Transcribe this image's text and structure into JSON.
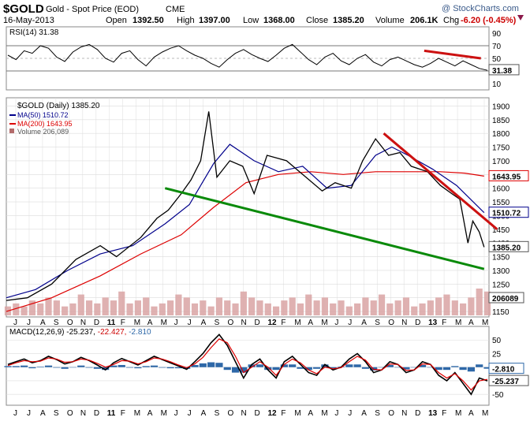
{
  "header": {
    "symbol": "$GOLD",
    "name": "Gold - Spot Price (EOD)",
    "exchange": "CME",
    "date": "16-May-2013",
    "open_label": "Open",
    "open": "1392.50",
    "high_label": "High",
    "high": "1397.00",
    "low_label": "Low",
    "low": "1368.00",
    "close_label": "Close",
    "close": "1385.20",
    "volume_label": "Volume",
    "volume": "206.1K",
    "chg_label": "Chg",
    "chg": "-6.20 (-0.45%)",
    "watermark": "@ StockCharts.com"
  },
  "colors": {
    "price": "#000000",
    "ma50": "#00008b",
    "ma200": "#dd0000",
    "volume": "#d9a3a3",
    "green_trend": "#0a8a0a",
    "red_trend": "#cc1111",
    "macd_hist": "#2e68a8",
    "macd_signal": "#dd0000",
    "grid": "#dcdcdc"
  },
  "chart_data": [
    {
      "type": "line",
      "panel": "rsi",
      "label": "RSI(14) 31.38",
      "last_value": "31.38",
      "ylim": [
        0,
        100
      ],
      "ticks": [
        "90",
        "70",
        "50",
        "30",
        "10"
      ],
      "levels": [
        30,
        70
      ],
      "trendline": {
        "x": [
          2013.0,
          2013.35
        ],
        "y": [
          62,
          50
        ]
      },
      "values": [
        55,
        48,
        62,
        58,
        70,
        66,
        52,
        45,
        60,
        68,
        72,
        64,
        50,
        44,
        58,
        62,
        48,
        38,
        52,
        60,
        66,
        70,
        62,
        55,
        50,
        42,
        36,
        48,
        58,
        64,
        56,
        50,
        45,
        55,
        66,
        72,
        60,
        48,
        40,
        52,
        58,
        46,
        40,
        50,
        56,
        44,
        38,
        48,
        52,
        46,
        40,
        36,
        42,
        50,
        44,
        38,
        46,
        40,
        34,
        31
      ]
    },
    {
      "type": "line",
      "panel": "price",
      "title": "$GOLD (Daily) 1385.20",
      "legend": [
        {
          "name": "$GOLD (Daily)",
          "value": "1385.20"
        },
        {
          "name": "MA(50)",
          "value": "1510.72"
        },
        {
          "name": "MA(200)",
          "value": "1643.95"
        },
        {
          "name": "Volume",
          "value": "206,089"
        }
      ],
      "ylim": [
        1130,
        1930
      ],
      "yticks": [
        "1900",
        "1850",
        "1800",
        "1750",
        "1700",
        "1650",
        "1600",
        "1550",
        "1500",
        "1450",
        "1400",
        "1350",
        "1300",
        "1250",
        "1200",
        "1150"
      ],
      "x_labels": [
        "J",
        "J",
        "A",
        "S",
        "O",
        "N",
        "D",
        "11",
        "F",
        "M",
        "A",
        "M",
        "J",
        "J",
        "A",
        "S",
        "O",
        "N",
        "D",
        "12",
        "F",
        "M",
        "A",
        "M",
        "J",
        "J",
        "A",
        "S",
        "O",
        "N",
        "D",
        "13",
        "F",
        "M",
        "A",
        "M"
      ],
      "last_labels": {
        "ma200": "1643.95",
        "ma50": "1510.72",
        "close": "1385.20",
        "volume": "206089"
      },
      "series": [
        {
          "name": "Close",
          "x": [
            2010.42,
            2010.55,
            2010.7,
            2010.85,
            2011.0,
            2011.1,
            2011.25,
            2011.35,
            2011.42,
            2011.5,
            2011.56,
            2011.62,
            2011.67,
            2011.72,
            2011.8,
            2011.88,
            2011.95,
            2012.03,
            2012.15,
            2012.25,
            2012.37,
            2012.45,
            2012.55,
            2012.62,
            2012.7,
            2012.78,
            2012.85,
            2012.92,
            2013.02,
            2013.1,
            2013.17,
            2013.22,
            2013.27,
            2013.3,
            2013.34,
            2013.37
          ],
          "y": [
            1190,
            1200,
            1250,
            1340,
            1390,
            1350,
            1420,
            1490,
            1520,
            1580,
            1630,
            1700,
            1880,
            1640,
            1700,
            1680,
            1580,
            1720,
            1700,
            1650,
            1590,
            1620,
            1600,
            1700,
            1780,
            1720,
            1730,
            1680,
            1660,
            1610,
            1580,
            1560,
            1400,
            1480,
            1440,
            1385
          ]
        },
        {
          "name": "MA(50)",
          "x": [
            2010.42,
            2010.6,
            2010.8,
            2011.0,
            2011.2,
            2011.4,
            2011.55,
            2011.7,
            2011.8,
            2011.95,
            2012.1,
            2012.25,
            2012.4,
            2012.55,
            2012.7,
            2012.8,
            2012.9,
            2013.05,
            2013.2,
            2013.37
          ],
          "y": [
            1200,
            1230,
            1300,
            1360,
            1390,
            1470,
            1540,
            1690,
            1760,
            1700,
            1660,
            1680,
            1600,
            1610,
            1720,
            1750,
            1720,
            1670,
            1610,
            1510.72
          ]
        },
        {
          "name": "MA(200)",
          "x": [
            2010.42,
            2010.7,
            2011.0,
            2011.25,
            2011.5,
            2011.7,
            2011.9,
            2012.1,
            2012.3,
            2012.5,
            2012.7,
            2012.9,
            2013.1,
            2013.25,
            2013.37
          ],
          "y": [
            1150,
            1200,
            1280,
            1360,
            1430,
            1530,
            1620,
            1650,
            1660,
            1650,
            1660,
            1660,
            1660,
            1655,
            1643.95
          ]
        },
        {
          "name": "Volume",
          "values": [
            3,
            4,
            3,
            5,
            4,
            6,
            5,
            3,
            4,
            7,
            5,
            4,
            6,
            5,
            8,
            4,
            5,
            6,
            3,
            4,
            5,
            7,
            6,
            4,
            5,
            3,
            6,
            5,
            4,
            8,
            6,
            5,
            4,
            3,
            5,
            6,
            4,
            7,
            5,
            6,
            4,
            5,
            3,
            4,
            6,
            5,
            7,
            4,
            5,
            6,
            3,
            4,
            5,
            6,
            7,
            5,
            4,
            6,
            9,
            8
          ]
        },
        {
          "name": "Support trendline",
          "x": [
            2011.4,
            2013.37
          ],
          "y": [
            1600,
            1305
          ]
        },
        {
          "name": "Resistance trendline",
          "x": [
            2012.75,
            2013.45
          ],
          "y": [
            1800,
            1450
          ]
        }
      ]
    },
    {
      "type": "line",
      "panel": "macd",
      "label_parts": [
        "MACD(12,26,9)",
        "-25.237,",
        "-22.427,",
        "-2.810"
      ],
      "last_labels": {
        "hist": "-2.810",
        "macd": "-25.237"
      },
      "ylim": [
        -70,
        75
      ],
      "yticks": [
        "50",
        "25",
        "0",
        "-25",
        "-50"
      ],
      "macd": [
        5,
        10,
        15,
        8,
        12,
        20,
        14,
        6,
        10,
        18,
        12,
        4,
        -5,
        8,
        16,
        10,
        4,
        12,
        20,
        14,
        8,
        2,
        -4,
        10,
        25,
        45,
        60,
        40,
        10,
        -20,
        5,
        15,
        -5,
        -20,
        10,
        20,
        5,
        -10,
        -15,
        5,
        -5,
        0,
        15,
        25,
        10,
        -10,
        -5,
        10,
        5,
        -10,
        -5,
        10,
        5,
        -15,
        -25,
        -10,
        -30,
        -50,
        -20,
        -25.237
      ],
      "signal": [
        3,
        8,
        12,
        10,
        11,
        17,
        15,
        9,
        10,
        15,
        13,
        7,
        0,
        5,
        12,
        11,
        6,
        10,
        17,
        15,
        10,
        4,
        -1,
        6,
        18,
        36,
        52,
        45,
        20,
        -10,
        0,
        10,
        0,
        -15,
        5,
        15,
        8,
        -5,
        -12,
        0,
        -3,
        -1,
        10,
        20,
        13,
        -4,
        -5,
        6,
        5,
        -6,
        -5,
        6,
        5,
        -10,
        -20,
        -12,
        -25,
        -42,
        -25,
        -22.427
      ],
      "histogram": [
        2,
        2,
        3,
        -2,
        1,
        3,
        -1,
        -3,
        0,
        3,
        -1,
        -3,
        -5,
        3,
        4,
        -1,
        -2,
        2,
        3,
        -1,
        -2,
        -2,
        -3,
        4,
        7,
        9,
        8,
        -5,
        -10,
        -10,
        5,
        5,
        -5,
        -5,
        5,
        5,
        -3,
        -5,
        -3,
        5,
        -2,
        1,
        5,
        5,
        -3,
        -6,
        0,
        4,
        0,
        -4,
        0,
        4,
        0,
        -5,
        -5,
        2,
        -5,
        -8,
        5,
        -2.81
      ]
    }
  ]
}
